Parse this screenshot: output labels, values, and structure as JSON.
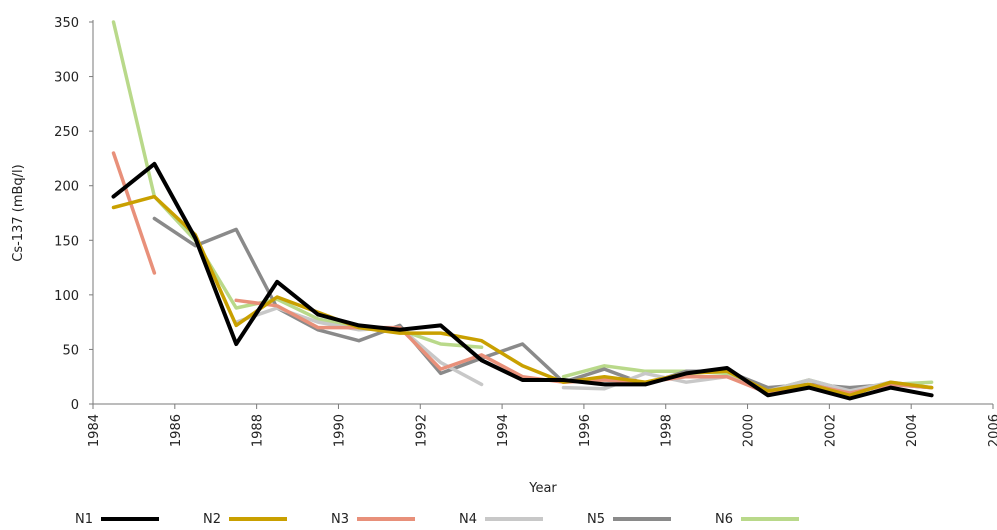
{
  "chart_data": {
    "type": "line",
    "title": "",
    "xlabel": "Year",
    "ylabel": "Cs-137 (mBq/l)",
    "xlim": [
      1984,
      2006
    ],
    "ylim": [
      0,
      350
    ],
    "x_ticks": [
      "1984",
      "1986",
      "1988",
      "1990",
      "1992",
      "1994",
      "1996",
      "1998",
      "2000",
      "2002",
      "2004",
      "2006"
    ],
    "y_ticks": [
      "0",
      "50",
      "100",
      "150",
      "200",
      "250",
      "300",
      "350"
    ],
    "grid": false,
    "legend_position": "bottom",
    "series": [
      {
        "name": "N1",
        "color": "#000000",
        "points": [
          [
            1984.5,
            190
          ],
          [
            1985.5,
            220
          ],
          [
            1986.5,
            152
          ],
          [
            1987.5,
            55
          ],
          [
            1988.5,
            112
          ],
          [
            1989.5,
            82
          ],
          [
            1990.5,
            72
          ],
          [
            1991.5,
            68
          ],
          [
            1992.5,
            72
          ],
          [
            1993.5,
            40
          ],
          [
            1994.5,
            22
          ],
          [
            1995.5,
            22
          ],
          [
            1996.5,
            18
          ],
          [
            1997.5,
            18
          ],
          [
            1998.5,
            28
          ],
          [
            1999.5,
            33
          ],
          [
            2000.5,
            8
          ],
          [
            2001.5,
            15
          ],
          [
            2002.5,
            5
          ],
          [
            2003.5,
            15
          ],
          [
            2004.5,
            8
          ]
        ]
      },
      {
        "name": "N2",
        "color": "#C9A000",
        "points": [
          [
            1984.5,
            180
          ],
          [
            1985.5,
            190
          ],
          [
            1986.5,
            155
          ],
          [
            1987.5,
            72
          ],
          [
            1988.5,
            98
          ],
          [
            1989.5,
            84
          ],
          [
            1990.5,
            70
          ],
          [
            1991.5,
            65
          ],
          [
            1992.5,
            65
          ],
          [
            1993.5,
            58
          ],
          [
            1994.5,
            35
          ],
          [
            1995.5,
            20
          ],
          [
            1996.5,
            25
          ],
          [
            1997.5,
            20
          ],
          [
            1998.5,
            28
          ],
          [
            1999.5,
            30
          ],
          [
            2000.5,
            12
          ],
          [
            2001.5,
            18
          ],
          [
            2002.5,
            8
          ],
          [
            2003.5,
            20
          ],
          [
            2004.5,
            15
          ]
        ]
      },
      {
        "name": "N3",
        "color": "#E8907A",
        "points": [
          [
            1984.5,
            230
          ],
          [
            1985.5,
            120
          ],
          [
            null,
            null
          ],
          [
            1987.5,
            95
          ],
          [
            1988.5,
            90
          ],
          [
            1989.5,
            70
          ],
          [
            1990.5,
            70
          ],
          [
            1991.5,
            70
          ],
          [
            1992.5,
            32
          ],
          [
            1993.5,
            45
          ],
          [
            1994.5,
            25
          ],
          [
            1995.5,
            20
          ],
          [
            1996.5,
            22
          ],
          [
            1997.5,
            20
          ],
          [
            1998.5,
            25
          ],
          [
            1999.5,
            25
          ],
          [
            2000.5,
            10
          ],
          [
            2001.5,
            18
          ],
          [
            2002.5,
            10
          ],
          [
            2003.5,
            18
          ],
          [
            2004.5,
            15
          ]
        ]
      },
      {
        "name": "N4",
        "color": "#C8C8C8",
        "points": [
          [
            1987.5,
            75
          ],
          [
            1988.5,
            88
          ],
          [
            1989.5,
            75
          ],
          [
            1990.5,
            68
          ],
          [
            1991.5,
            70
          ],
          [
            1992.5,
            38
          ],
          [
            1993.5,
            18
          ],
          [
            null,
            null
          ],
          [
            1995.5,
            15
          ],
          [
            1996.5,
            14
          ],
          [
            1997.5,
            28
          ],
          [
            1998.5,
            20
          ],
          [
            1999.5,
            25
          ],
          [
            2000.5,
            12
          ],
          [
            2001.5,
            22
          ],
          [
            2002.5,
            12
          ],
          [
            2003.5,
            20
          ],
          [
            2004.5,
            15
          ]
        ]
      },
      {
        "name": "N5",
        "color": "#8A8A8A",
        "points": [
          [
            1985.5,
            170
          ],
          [
            1986.5,
            145
          ],
          [
            1987.5,
            160
          ],
          [
            1988.5,
            88
          ],
          [
            1989.5,
            68
          ],
          [
            1990.5,
            58
          ],
          [
            1991.5,
            72
          ],
          [
            1992.5,
            28
          ],
          [
            1993.5,
            42
          ],
          [
            1994.5,
            55
          ],
          [
            1995.5,
            20
          ],
          [
            1996.5,
            32
          ],
          [
            1997.5,
            18
          ],
          [
            1998.5,
            30
          ],
          [
            1999.5,
            30
          ],
          [
            2000.5,
            15
          ],
          [
            2001.5,
            18
          ],
          [
            2002.5,
            15
          ],
          [
            2003.5,
            18
          ],
          [
            2004.5,
            15
          ]
        ]
      },
      {
        "name": "N6",
        "color": "#B9D98A",
        "points": [
          [
            1984.5,
            350
          ],
          [
            1985.5,
            190
          ],
          [
            1986.5,
            150
          ],
          [
            1987.5,
            88
          ],
          [
            1988.5,
            96
          ],
          [
            1989.5,
            78
          ],
          [
            1990.5,
            70
          ],
          [
            1991.5,
            68
          ],
          [
            1992.5,
            55
          ],
          [
            1993.5,
            52
          ],
          [
            null,
            null
          ],
          [
            1995.5,
            25
          ],
          [
            1996.5,
            35
          ],
          [
            1997.5,
            30
          ],
          [
            1998.5,
            30
          ],
          [
            1999.5,
            28
          ],
          [
            2000.5,
            12
          ],
          [
            2001.5,
            22
          ],
          [
            2002.5,
            12
          ],
          [
            2003.5,
            18
          ],
          [
            2004.5,
            20
          ]
        ]
      }
    ]
  }
}
